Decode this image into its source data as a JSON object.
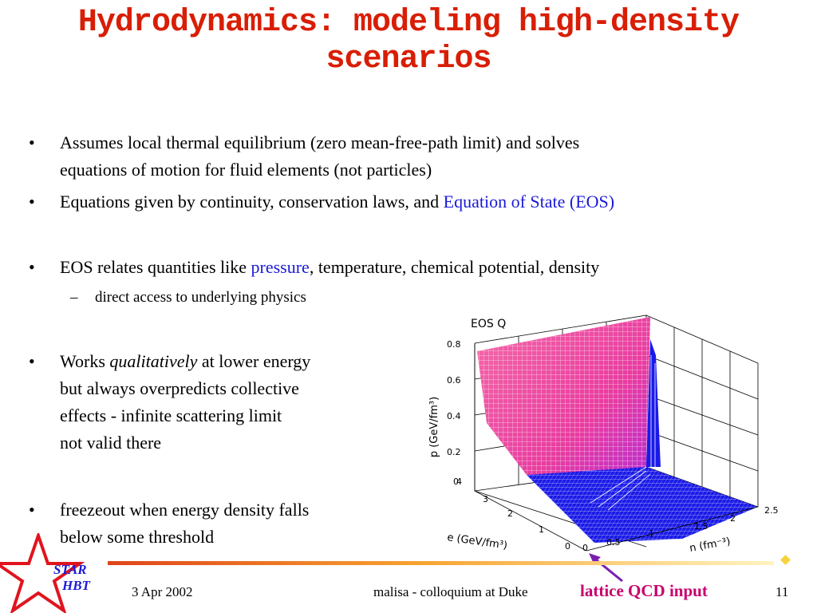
{
  "slide": {
    "title_line1": "Hydrodynamics: modeling high-density",
    "title_line2": "scenarios",
    "bullets": [
      {
        "line1": "Assumes local thermal equilibrium (zero mean-free-path limit) and solves",
        "line2": "equations of motion for fluid elements (not particles)"
      },
      {
        "text": "Equations given by continuity, conservation laws, and ",
        "highlight": "Equation of State (EOS)"
      },
      {
        "pre": "EOS relates quantities like ",
        "highlight": "pressure",
        "post": ", temperature, chemical potential, density"
      },
      {
        "pre": "Works ",
        "emph": "qualitatively",
        "post": " at lower energy",
        "line2": "but always overpredicts collective",
        "line3": "effects - infinite scattering limit",
        "line4": "not valid there"
      },
      {
        "line1": "freezeout when energy density falls",
        "line2": "below some threshold"
      }
    ],
    "sub_bullet": "direct access to underlying physics",
    "bullet_char": "•",
    "dash_char": "–"
  },
  "figure": {
    "title": "EOS Q",
    "ylabel": "p (GeV/fm³)",
    "xlabel": "e (GeV/fm³)",
    "zlabel": "n (fm⁻³)",
    "p_ticks": [
      "0",
      "0.2",
      "0.4",
      "0.6",
      "0.8"
    ],
    "e_ticks": [
      "0",
      "1",
      "2",
      "3",
      "4"
    ],
    "n_ticks": [
      "0",
      "0.5",
      "1",
      "1.5",
      "2",
      "2.5"
    ]
  },
  "annotation": {
    "label": "lattice QCD input",
    "color": "#c8006e"
  },
  "footer": {
    "date": "3 Apr 2002",
    "center": "malisa - colloquium at Duke",
    "page": "11",
    "logo_line1": "STAR",
    "logo_line2": "HBT"
  },
  "colors": {
    "title": "#d81e05",
    "link": "#1a1ad8",
    "surface_pink": "#f04da0",
    "surface_blue": "#1010e0"
  }
}
